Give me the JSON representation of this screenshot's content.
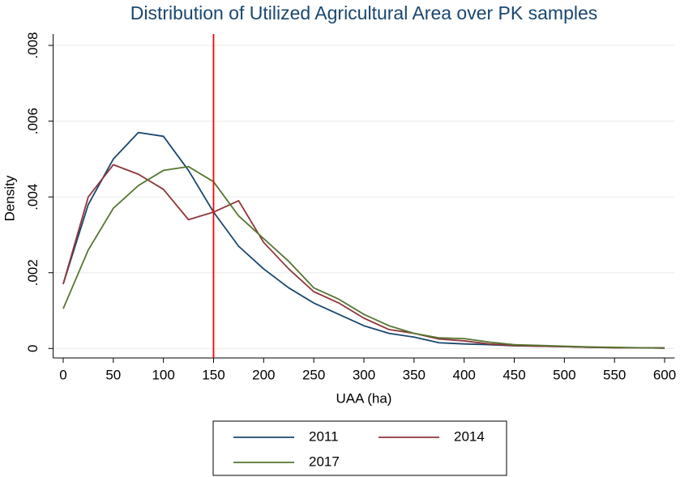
{
  "chart_data": {
    "type": "line",
    "title": "Distribution of Utilized Agricultural Area over PK samples",
    "xlabel": "UAA (ha)",
    "ylabel": "Density",
    "x": [
      0,
      25,
      50,
      75,
      100,
      125,
      150,
      175,
      200,
      225,
      250,
      275,
      300,
      325,
      350,
      375,
      400,
      425,
      450,
      475,
      500,
      525,
      550,
      575,
      600
    ],
    "series": [
      {
        "name": "2011",
        "color": "#1a476f",
        "values": [
          0.0017,
          0.0038,
          0.005,
          0.0057,
          0.0056,
          0.0047,
          0.0036,
          0.0027,
          0.0021,
          0.0016,
          0.0012,
          0.0009,
          0.0006,
          0.0004,
          0.0003,
          0.00015,
          0.00012,
          0.0001,
          7e-05,
          6e-05,
          5e-05,
          3e-05,
          2e-05,
          2e-05,
          1e-05
        ]
      },
      {
        "name": "2014",
        "color": "#90353b",
        "values": [
          0.0017,
          0.004,
          0.00485,
          0.0046,
          0.0042,
          0.0034,
          0.0036,
          0.0039,
          0.0028,
          0.0021,
          0.0015,
          0.0012,
          0.0008,
          0.0005,
          0.0004,
          0.00025,
          0.0002,
          0.00012,
          8e-05,
          6e-05,
          5e-05,
          3e-05,
          2e-05,
          2e-05,
          1e-05
        ]
      },
      {
        "name": "2017",
        "color": "#55752f",
        "values": [
          0.00105,
          0.0026,
          0.0037,
          0.0043,
          0.0047,
          0.0048,
          0.0044,
          0.0035,
          0.0029,
          0.0023,
          0.0016,
          0.0013,
          0.0009,
          0.0006,
          0.0004,
          0.00028,
          0.00026,
          0.00017,
          0.0001,
          8e-05,
          6e-05,
          4e-05,
          3e-05,
          2e-05,
          2e-05
        ]
      }
    ],
    "vline": {
      "value": 150,
      "color": "#ff0000"
    },
    "xlim": [
      -10,
      610
    ],
    "xticks": [
      0,
      50,
      100,
      150,
      200,
      250,
      300,
      350,
      400,
      450,
      500,
      550,
      600
    ],
    "ylim": [
      -0.00025,
      0.0083
    ],
    "yticks": [
      0,
      {
        "value": 0.002,
        "label": ".002"
      },
      {
        "value": 0.004,
        "label": ".004"
      },
      {
        "value": 0.006,
        "label": ".006"
      },
      {
        "value": 0.008,
        "label": ".008"
      }
    ],
    "grid": true
  }
}
